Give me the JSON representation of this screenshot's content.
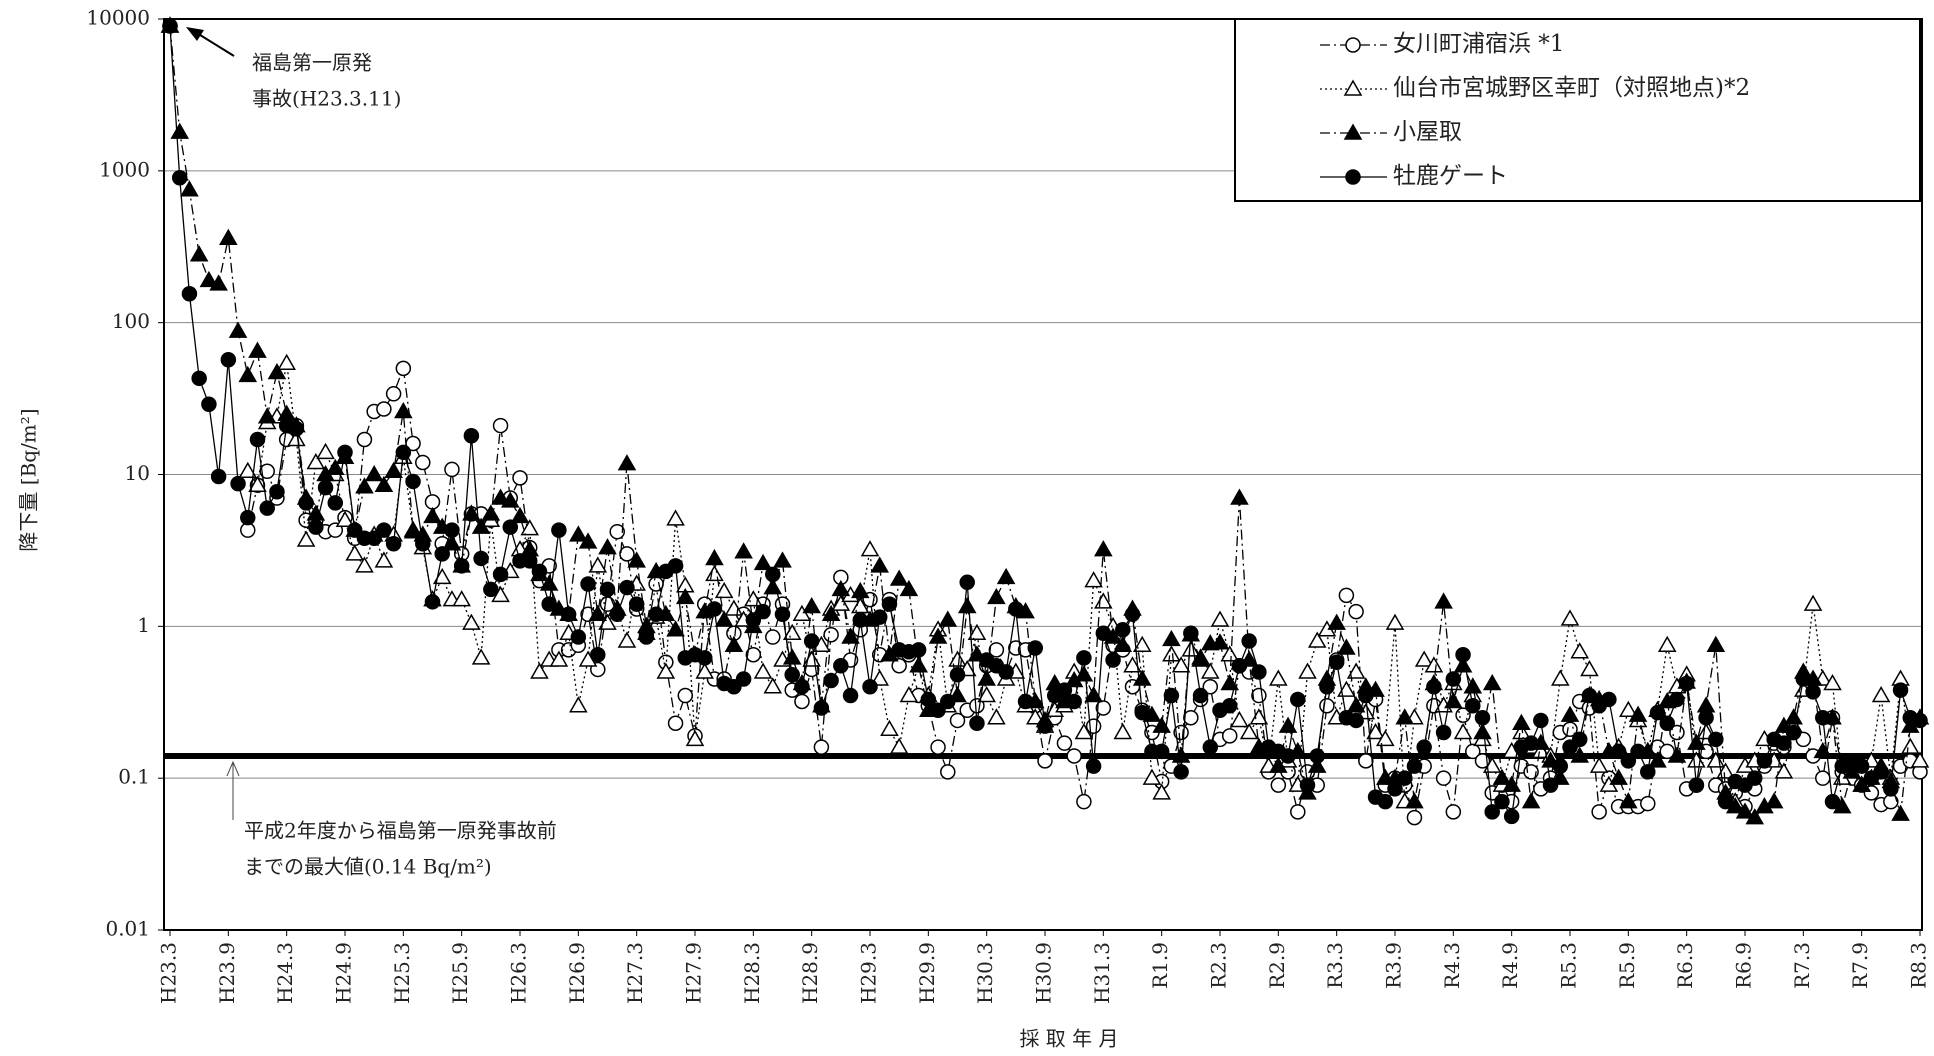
{
  "chart_data": {
    "type": "line",
    "y_label": "降下量 [Bq/m²]",
    "x_label": "採 取 年 月",
    "log_scale": true,
    "grid": true,
    "ylim": [
      0.01,
      10000
    ],
    "yticks": [
      0.01,
      0.1,
      1,
      10,
      100,
      1000,
      10000
    ],
    "legend": "upper right",
    "categories": [
      "H23.3",
      null,
      null,
      null,
      null,
      null,
      "H23.9",
      null,
      null,
      null,
      null,
      null,
      "H24.3",
      null,
      null,
      null,
      null,
      null,
      "H24.9",
      null,
      null,
      null,
      null,
      null,
      "H25.3",
      null,
      null,
      null,
      null,
      null,
      "H25.9",
      null,
      null,
      null,
      null,
      null,
      "H26.3",
      null,
      null,
      null,
      null,
      null,
      "H26.9",
      null,
      null,
      null,
      null,
      null,
      "H27.3",
      null,
      null,
      null,
      null,
      null,
      "H27.9",
      null,
      null,
      null,
      null,
      null,
      "H28.3",
      null,
      null,
      null,
      null,
      null,
      "H28.9",
      null,
      null,
      null,
      null,
      null,
      "H29.3",
      null,
      null,
      null,
      null,
      null,
      "H29.9",
      null,
      null,
      null,
      null,
      null,
      "H30.3",
      null,
      null,
      null,
      null,
      null,
      "H30.9",
      null,
      null,
      null,
      null,
      null,
      "H31.3",
      null,
      null,
      null,
      null,
      null,
      "R1.9",
      null,
      null,
      null,
      null,
      null,
      "R2.3",
      null,
      null,
      null,
      null,
      null,
      "R2.9",
      null,
      null,
      null,
      null,
      null,
      "R3.3",
      null,
      null,
      null,
      null,
      null,
      "R3.9",
      null,
      null,
      null,
      null,
      null,
      "R4.3",
      null,
      null,
      null,
      null,
      null,
      "R4.9",
      null,
      null,
      null,
      null,
      null,
      "R5.3",
      null,
      null,
      null,
      null,
      null,
      "R5.9",
      null,
      null,
      null,
      null,
      null,
      "R6.3",
      null,
      null,
      null,
      null,
      null,
      "R6.9",
      null,
      null,
      null,
      null,
      null,
      "R7.3",
      null,
      null,
      null,
      null,
      null,
      "R7.9",
      null,
      null,
      null,
      null,
      null,
      "R8.3"
    ],
    "series": [
      {
        "name": "女川町浦宿浜 *1",
        "color": "#000000",
        "marker": "circle-open",
        "line_style": "dash-dot",
        "values": [
          9000,
          null,
          null,
          null,
          null,
          null,
          null,
          null,
          4.3,
          8.5,
          10.5,
          7,
          17,
          21,
          5,
          5,
          4.2,
          4.3,
          5.2,
          3.8,
          17,
          26,
          27,
          34,
          50,
          16,
          12,
          6.6,
          3.5,
          10.8,
          3,
          5.5,
          5.5,
          5,
          21,
          7,
          9.5,
          3.3,
          2,
          2.5,
          0.7,
          0.7,
          0.75,
          1.2,
          0.52,
          1.4,
          4.2,
          3,
          1.3,
          0.9,
          1.9,
          0.58,
          0.23,
          0.35,
          0.19,
          1.4,
          0.45,
          0.45,
          0.9,
          1.2,
          0.65,
          1.4,
          0.85,
          1.4,
          0.38,
          0.32,
          0.52,
          0.16,
          0.88,
          2.1,
          0.6,
          0.95,
          1.5,
          0.65,
          1.5,
          0.55,
          0.65,
          0.35,
          0.3,
          0.16,
          0.11,
          0.24,
          0.28,
          0.3,
          0.55,
          0.7,
          0.5,
          0.72,
          0.7,
          0.3,
          0.13,
          0.25,
          0.17,
          0.14,
          0.07,
          0.22,
          0.29,
          0.75,
          0.7,
          0.4,
          0.28,
          0.2,
          0.095,
          0.12,
          0.2,
          0.25,
          0.33,
          0.4,
          0.18,
          0.19,
          0.55,
          0.5,
          0.35,
          0.11,
          0.09,
          0.11,
          0.06,
          0.11,
          0.09,
          0.3,
          0.6,
          1.6,
          1.25,
          0.13,
          0.33,
          0.09,
          0.1,
          0.09,
          0.055,
          0.12,
          0.3,
          0.1,
          0.06,
          0.26,
          0.15,
          0.13,
          0.08,
          0.09,
          0.07,
          0.12,
          0.11,
          0.085,
          0.1,
          0.2,
          0.21,
          0.32,
          0.29,
          0.06,
          0.1,
          0.065,
          0.065,
          0.065,
          0.068,
          0.16,
          0.15,
          0.2,
          0.085,
          0.09,
          0.15,
          0.09,
          0.085,
          0.08,
          0.065,
          0.085,
          0.12,
          0.17,
          0.16,
          0.2,
          0.18,
          0.14,
          0.1,
          0.25,
          0.11,
          0.1,
          0.09,
          0.08,
          0.067,
          0.07,
          0.12,
          0.13,
          0.11
        ]
      },
      {
        "name": "仙台市宮城野区幸町（対照地点)*2",
        "color": "#000000",
        "marker": "triangle-open",
        "line_style": "dotted",
        "values": [
          9000,
          null,
          null,
          null,
          null,
          null,
          null,
          null,
          10.5,
          8.5,
          22,
          24,
          54,
          17,
          3.7,
          12,
          14,
          10,
          5,
          3,
          2.5,
          4,
          2.7,
          4,
          13,
          4.3,
          3.3,
          1.5,
          2.1,
          1.5,
          1.5,
          1.05,
          0.62,
          5,
          1.6,
          2.3,
          3.2,
          4.4,
          0.5,
          0.6,
          0.6,
          0.9,
          0.3,
          0.6,
          2.5,
          1.05,
          1.3,
          0.8,
          1.9,
          0.9,
          1.15,
          0.5,
          5.1,
          1.85,
          0.18,
          0.5,
          2.2,
          1.7,
          1.3,
          1.1,
          1.5,
          0.5,
          0.4,
          0.6,
          0.9,
          1.2,
          0.6,
          0.75,
          1.3,
          1.4,
          1.6,
          1.35,
          3.2,
          0.45,
          0.21,
          0.16,
          0.35,
          0.55,
          0.35,
          0.95,
          0.3,
          0.6,
          0.52,
          0.9,
          0.35,
          0.25,
          0.45,
          0.5,
          0.3,
          0.25,
          0.22,
          0.28,
          0.3,
          0.5,
          0.2,
          2,
          1.45,
          1,
          0.2,
          0.55,
          0.75,
          0.1,
          0.08,
          0.65,
          0.55,
          0.7,
          0.62,
          0.5,
          1.1,
          0.65,
          0.24,
          0.2,
          0.25,
          0.12,
          0.45,
          0.13,
          0.09,
          0.5,
          0.8,
          0.95,
          0.25,
          0.38,
          0.5,
          0.27,
          0.2,
          0.18,
          1.05,
          0.07,
          0.25,
          0.6,
          0.55,
          0.3,
          0.42,
          0.2,
          0.35,
          0.18,
          0.12,
          0.09,
          0.15,
          0.2,
          0.16,
          0.15,
          0.14,
          0.45,
          1.12,
          0.68,
          0.52,
          0.12,
          0.09,
          0.16,
          0.28,
          0.24,
          0.15,
          0.28,
          0.75,
          0.4,
          0.48,
          0.13,
          0.2,
          0.13,
          0.11,
          0.07,
          0.12,
          0.13,
          0.18,
          0.13,
          0.11,
          0.22,
          0.38,
          1.4,
          0.45,
          0.42,
          0.1,
          0.11,
          0.09,
          0.13,
          0.35,
          0.1,
          0.45,
          0.16,
          0.13
        ]
      },
      {
        "name": "小屋取",
        "color": "#000000",
        "marker": "triangle-filled",
        "line_style": "dash-dot",
        "values": [
          9000,
          1800,
          750,
          280,
          190,
          180,
          360,
          88,
          45,
          65,
          24,
          47,
          25,
          21,
          7,
          5.5,
          10,
          11,
          13,
          4.3,
          8.3,
          10,
          8.5,
          10.5,
          26,
          4.2,
          4,
          5.3,
          4.5,
          3.5,
          2.5,
          5.5,
          4.5,
          5.5,
          7,
          6.7,
          5.3,
          3.2,
          2.2,
          1.9,
          1.3,
          1.2,
          4,
          3.6,
          1.2,
          3.3,
          1.3,
          11.8,
          2.7,
          1,
          2.3,
          1.2,
          0.95,
          1.55,
          0.65,
          1.25,
          2.8,
          1.1,
          0.75,
          3.1,
          1,
          2.6,
          1.8,
          2.7,
          0.62,
          0.42,
          1.35,
          0.3,
          1.2,
          1.75,
          0.85,
          1.7,
          1.1,
          2.5,
          0.65,
          2.05,
          1.75,
          0.55,
          0.28,
          0.85,
          1.1,
          0.35,
          1.35,
          0.65,
          0.45,
          1.55,
          2.1,
          1.35,
          1.25,
          0.32,
          0.24,
          0.42,
          0.32,
          0.44,
          0.48,
          0.35,
          3.2,
          0.85,
          0.75,
          1.3,
          0.45,
          0.26,
          0.22,
          0.82,
          0.14,
          0.88,
          0.6,
          0.77,
          0.78,
          0.42,
          7,
          0.6,
          0.16,
          0.15,
          0.12,
          0.22,
          0.15,
          0.08,
          0.12,
          0.45,
          1.05,
          0.72,
          0.3,
          0.4,
          0.38,
          0.1,
          0.1,
          0.25,
          0.07,
          0.15,
          0.42,
          1.45,
          0.32,
          0.55,
          0.4,
          0.2,
          0.42,
          0.1,
          0.09,
          0.23,
          0.07,
          0.17,
          0.13,
          0.1,
          0.26,
          0.14,
          0.35,
          0.33,
          0.15,
          0.1,
          0.07,
          0.26,
          0.15,
          0.13,
          0.32,
          0.14,
          0.43,
          0.17,
          0.3,
          0.75,
          0.08,
          0.065,
          0.06,
          0.055,
          0.065,
          0.07,
          0.22,
          0.25,
          0.5,
          0.45,
          0.15,
          0.25,
          0.065,
          0.11,
          0.09,
          0.1,
          0.12,
          0.095,
          0.058,
          0.22,
          0.25
        ]
      },
      {
        "name": "牡鹿ゲート",
        "color": "#000000",
        "marker": "circle-filled",
        "line_style": "solid",
        "values": [
          9000,
          900,
          155,
          43,
          29,
          9.7,
          57,
          8.7,
          5.2,
          17,
          6,
          7.7,
          21,
          20,
          6.5,
          4.5,
          8.2,
          6.5,
          14,
          4.3,
          3.8,
          3.8,
          4.3,
          3.5,
          14,
          9,
          3.5,
          1.45,
          3,
          4.3,
          2.5,
          18,
          2.8,
          1.75,
          2.2,
          4.5,
          2.7,
          2.7,
          2.3,
          1.4,
          4.3,
          1.2,
          0.85,
          1.9,
          0.65,
          1.75,
          1.2,
          1.8,
          1.4,
          0.85,
          1.2,
          2.3,
          2.5,
          0.62,
          0.65,
          0.62,
          1.3,
          0.42,
          0.4,
          0.45,
          1.1,
          1.25,
          2.2,
          1.2,
          0.48,
          0.4,
          0.8,
          0.29,
          0.44,
          0.55,
          0.35,
          1.1,
          0.4,
          1.15,
          1.4,
          0.7,
          0.68,
          0.7,
          0.33,
          0.28,
          0.32,
          0.48,
          1.95,
          0.23,
          0.6,
          0.55,
          0.5,
          1.3,
          0.32,
          0.72,
          0.22,
          0.35,
          0.38,
          0.32,
          0.62,
          0.12,
          0.9,
          0.6,
          0.95,
          1.2,
          0.27,
          0.15,
          0.15,
          0.35,
          0.11,
          0.9,
          0.35,
          0.16,
          0.28,
          0.3,
          0.55,
          0.8,
          0.5,
          0.16,
          0.15,
          0.14,
          0.33,
          0.09,
          0.14,
          0.4,
          0.58,
          0.25,
          0.24,
          0.35,
          0.075,
          0.07,
          0.085,
          0.1,
          0.12,
          0.16,
          0.4,
          0.2,
          0.45,
          0.65,
          0.3,
          0.25,
          0.06,
          0.07,
          0.056,
          0.16,
          0.17,
          0.24,
          0.09,
          0.12,
          0.16,
          0.18,
          0.35,
          0.3,
          0.33,
          0.15,
          0.13,
          0.15,
          0.11,
          0.27,
          0.23,
          0.33,
          0.42,
          0.09,
          0.25,
          0.18,
          0.07,
          0.095,
          0.09,
          0.1,
          0.13,
          0.18,
          0.17,
          0.2,
          0.45,
          0.37,
          0.25,
          0.07,
          0.12,
          0.13,
          0.12,
          0.1,
          0.11,
          0.085,
          0.38,
          0.25,
          0.24
        ]
      }
    ],
    "reference_line": {
      "value": 0.14,
      "color": "#000000",
      "label": [
        "平成2年度から福島第一原発事故前",
        "までの最大値(0.14 Bq/m²)"
      ]
    },
    "annotation": {
      "label": [
        "福島第一原発",
        "事故(H23.3.11)"
      ]
    }
  }
}
